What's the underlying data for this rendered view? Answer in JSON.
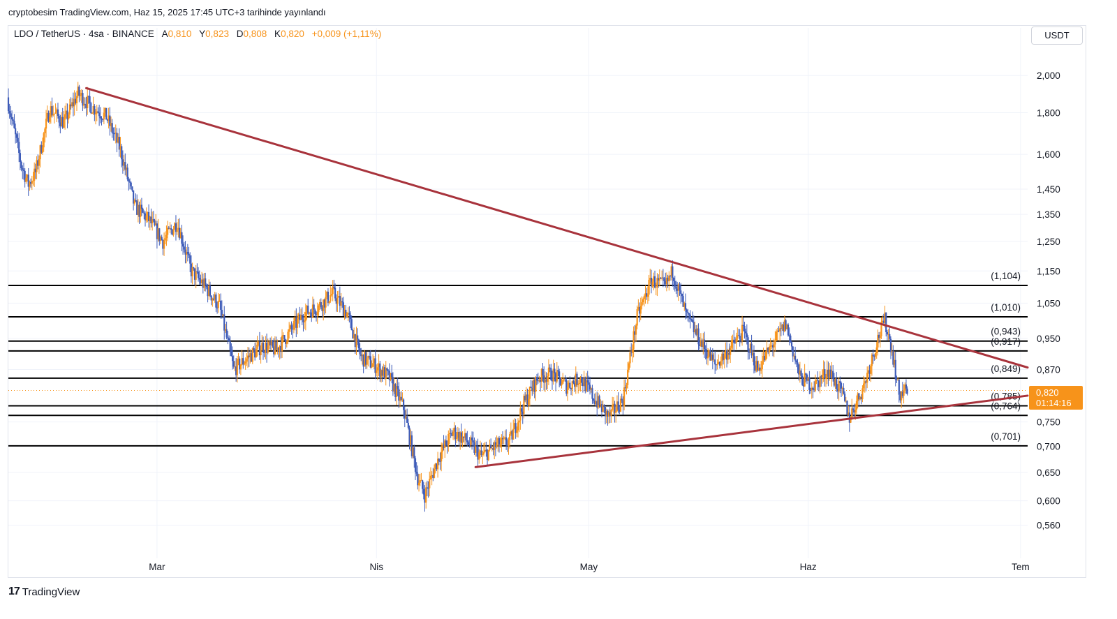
{
  "header": {
    "published_by": "cryptobesim TradingView.com, Haz 15, 2025 17:45 UTC+3 tarihinde yayınlandı"
  },
  "legend": {
    "symbol": "LDO / TetherUS · 4sa · BINANCE",
    "open_label": "A",
    "open": "0,810",
    "high_label": "Y",
    "high": "0,823",
    "low_label": "D",
    "low": "0,808",
    "close_label": "K",
    "close": "0,820",
    "change": "+0,009 (+1,11%)"
  },
  "price_axis": {
    "unit": "USDT"
  },
  "current_price": {
    "value": "0,820",
    "countdown": "01:14:16"
  },
  "brand": {
    "name": "TradingView",
    "logo_text": "17"
  },
  "colors": {
    "up_candle": "#f7931a",
    "down_candle": "#3d5bb8",
    "trendline": "#a8333c",
    "level_line": "#000000",
    "price_tag": "#f7931a"
  },
  "chart_data": {
    "type": "candlestick",
    "symbol": "LDO/USDT",
    "timeframe": "4h",
    "y_scale": "log",
    "ylim": [
      0.52,
      2.2
    ],
    "y_ticks": [
      {
        "value": 2.0,
        "label": "2,000"
      },
      {
        "value": 1.8,
        "label": "1,800"
      },
      {
        "value": 1.6,
        "label": "1,600"
      },
      {
        "value": 1.45,
        "label": "1,450"
      },
      {
        "value": 1.35,
        "label": "1,350"
      },
      {
        "value": 1.25,
        "label": "1,250"
      },
      {
        "value": 1.15,
        "label": "1,150"
      },
      {
        "value": 1.05,
        "label": "1,050"
      },
      {
        "value": 0.95,
        "label": "0,950"
      },
      {
        "value": 0.87,
        "label": "0,870"
      },
      {
        "value": 0.75,
        "label": "0,750"
      },
      {
        "value": 0.7,
        "label": "0,700"
      },
      {
        "value": 0.65,
        "label": "0,650"
      },
      {
        "value": 0.6,
        "label": "0,600"
      },
      {
        "value": 0.56,
        "label": "0,560"
      }
    ],
    "x_ticks": [
      {
        "date": "2025-03-01",
        "label": "Mar"
      },
      {
        "date": "2025-04-01",
        "label": "Nis"
      },
      {
        "date": "2025-05-01",
        "label": "May"
      },
      {
        "date": "2025-06-01",
        "label": "Haz"
      },
      {
        "date": "2025-07-01",
        "label": "Tem"
      }
    ],
    "x_range": [
      "2025-02-08",
      "2025-07-02"
    ],
    "levels": [
      {
        "value": 1.104,
        "label": "(1,104)"
      },
      {
        "value": 1.01,
        "label": "(1,010)"
      },
      {
        "value": 0.943,
        "label": "(0,943)"
      },
      {
        "value": 0.917,
        "label": "(0,917)"
      },
      {
        "value": 0.849,
        "label": "(0,849)"
      },
      {
        "value": 0.785,
        "label": "(0,785)"
      },
      {
        "value": 0.764,
        "label": "(0,764)"
      },
      {
        "value": 0.701,
        "label": "(0,701)"
      }
    ],
    "trendlines": [
      {
        "name": "descending",
        "from": {
          "date": "2025-02-19",
          "price": 1.93
        },
        "to": {
          "date": "2025-07-02",
          "price": 0.875
        }
      },
      {
        "name": "ascending",
        "from": {
          "date": "2025-04-15",
          "price": 0.66
        },
        "to": {
          "date": "2025-07-02",
          "price": 0.808
        }
      }
    ],
    "current_price_line": 0.82,
    "price_path": [
      [
        "2025-02-08",
        1.88
      ],
      [
        "2025-02-10",
        1.55
      ],
      [
        "2025-02-11",
        1.47
      ],
      [
        "2025-02-12",
        1.52
      ],
      [
        "2025-02-14",
        1.82
      ],
      [
        "2025-02-16",
        1.75
      ],
      [
        "2025-02-18",
        1.9
      ],
      [
        "2025-02-20",
        1.83
      ],
      [
        "2025-02-22",
        1.78
      ],
      [
        "2025-02-24",
        1.62
      ],
      [
        "2025-02-26",
        1.38
      ],
      [
        "2025-02-28",
        1.33
      ],
      [
        "2025-03-02",
        1.25
      ],
      [
        "2025-03-04",
        1.32
      ],
      [
        "2025-03-06",
        1.15
      ],
      [
        "2025-03-08",
        1.1
      ],
      [
        "2025-03-10",
        1.04
      ],
      [
        "2025-03-12",
        0.87
      ],
      [
        "2025-03-14",
        0.9
      ],
      [
        "2025-03-16",
        0.93
      ],
      [
        "2025-03-18",
        0.92
      ],
      [
        "2025-03-20",
        0.97
      ],
      [
        "2025-03-22",
        1.02
      ],
      [
        "2025-03-24",
        1.04
      ],
      [
        "2025-03-26",
        1.08
      ],
      [
        "2025-03-28",
        1.02
      ],
      [
        "2025-03-30",
        0.9
      ],
      [
        "2025-04-01",
        0.88
      ],
      [
        "2025-04-03",
        0.85
      ],
      [
        "2025-04-05",
        0.78
      ],
      [
        "2025-04-07",
        0.64
      ],
      [
        "2025-04-08",
        0.61
      ],
      [
        "2025-04-10",
        0.68
      ],
      [
        "2025-04-12",
        0.73
      ],
      [
        "2025-04-14",
        0.71
      ],
      [
        "2025-04-16",
        0.68
      ],
      [
        "2025-04-18",
        0.7
      ],
      [
        "2025-04-20",
        0.71
      ],
      [
        "2025-04-22",
        0.79
      ],
      [
        "2025-04-24",
        0.85
      ],
      [
        "2025-04-26",
        0.86
      ],
      [
        "2025-04-28",
        0.83
      ],
      [
        "2025-04-30",
        0.85
      ],
      [
        "2025-05-02",
        0.8
      ],
      [
        "2025-05-04",
        0.76
      ],
      [
        "2025-05-06",
        0.8
      ],
      [
        "2025-05-08",
        1.01
      ],
      [
        "2025-05-10",
        1.12
      ],
      [
        "2025-05-12",
        1.1
      ],
      [
        "2025-05-13",
        1.15
      ],
      [
        "2025-05-15",
        1.01
      ],
      [
        "2025-05-17",
        0.94
      ],
      [
        "2025-05-19",
        0.88
      ],
      [
        "2025-05-21",
        0.92
      ],
      [
        "2025-05-23",
        0.97
      ],
      [
        "2025-05-25",
        0.87
      ],
      [
        "2025-05-27",
        0.93
      ],
      [
        "2025-05-29",
        0.99
      ],
      [
        "2025-05-31",
        0.85
      ],
      [
        "2025-06-02",
        0.83
      ],
      [
        "2025-06-04",
        0.87
      ],
      [
        "2025-06-06",
        0.81
      ],
      [
        "2025-06-07",
        0.76
      ],
      [
        "2025-06-09",
        0.83
      ],
      [
        "2025-06-11",
        0.95
      ],
      [
        "2025-06-12",
        1.0
      ],
      [
        "2025-06-13",
        0.92
      ],
      [
        "2025-06-14",
        0.81
      ],
      [
        "2025-06-15",
        0.82
      ]
    ]
  }
}
